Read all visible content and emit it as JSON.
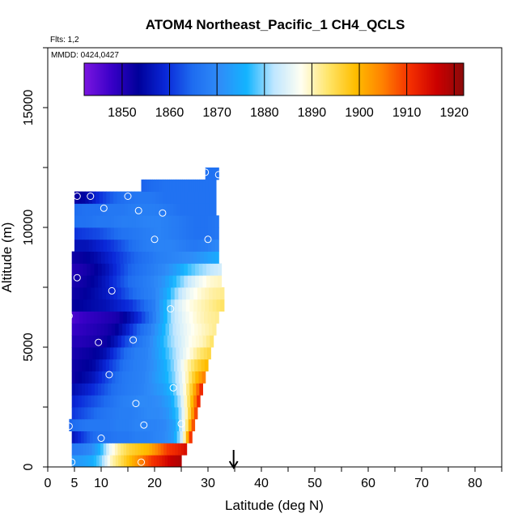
{
  "chart_data": {
    "type": "heatmap",
    "title": "ATOM4 Northeast_Pacific_1 CH4_QCLS",
    "flights_label": "Flts: 1,2",
    "date_label": "MMDD: 0424,0427",
    "xlabel": "Latitude (deg N)",
    "ylabel": "Altitude (m)",
    "xlim": [
      0,
      85
    ],
    "ylim": [
      0,
      17500
    ],
    "x_ticks": [
      0,
      5,
      10,
      20,
      30,
      40,
      50,
      60,
      70,
      80
    ],
    "y_ticks": [
      0,
      5000,
      10000,
      15000
    ],
    "y_tick_labels": [
      "0",
      "5000",
      "10000",
      "15000"
    ],
    "colorbar": {
      "range": [
        1842,
        1922
      ],
      "ticks": [
        1850,
        1860,
        1870,
        1880,
        1890,
        1900,
        1910,
        1920
      ],
      "tick_labels": [
        "1850",
        "1860",
        "1870",
        "1880",
        "1890",
        "1900",
        "1910",
        "1920"
      ],
      "colors": [
        "#7b16e0",
        "#3a00c8",
        "#00009a",
        "#0a28d8",
        "#1e6cf0",
        "#2f8cf8",
        "#13b4ff",
        "#bfe6ff",
        "#fffff2",
        "#ffe56a",
        "#ffbe00",
        "#ff8200",
        "#f53000",
        "#cc0000",
        "#8b0a0a"
      ]
    },
    "marker_lat": 34.8,
    "bands": [
      {
        "alt": [
          0,
          500
        ],
        "lat": [
          4.5,
          25
        ],
        "values": [
          1872,
          1873,
          1875,
          1880,
          1890,
          1895,
          1900,
          1905,
          1910,
          1913,
          1917,
          1919
        ]
      },
      {
        "alt": [
          500,
          1000
        ],
        "lat": [
          4.5,
          26
        ],
        "values": [
          1867,
          1868,
          1870,
          1876,
          1886,
          1892,
          1896,
          1898,
          1900,
          1905,
          1910,
          1912,
          1915
        ]
      },
      {
        "alt": [
          1000,
          1500
        ],
        "lat": [
          4.5,
          27
        ],
        "values": [
          1856,
          1860,
          1864,
          1866,
          1866,
          1867,
          1867,
          1868,
          1868,
          1869,
          1870,
          1873,
          1885,
          1915
        ]
      },
      {
        "alt": [
          1500,
          2000
        ],
        "lat": [
          4.0,
          27.5
        ],
        "values": [
          1864,
          1866,
          1867,
          1867,
          1867,
          1868,
          1868,
          1869,
          1869,
          1869,
          1870,
          1874,
          1888,
          1912
        ]
      },
      {
        "alt": [
          2000,
          2500
        ],
        "lat": [
          4.5,
          28
        ],
        "values": [
          1860,
          1862,
          1864,
          1866,
          1867,
          1868,
          1868,
          1869,
          1870,
          1870,
          1872,
          1878,
          1892,
          1912
        ]
      },
      {
        "alt": [
          2500,
          3000
        ],
        "lat": [
          4.5,
          28.5
        ],
        "values": [
          1858,
          1860,
          1862,
          1864,
          1866,
          1868,
          1869,
          1870,
          1870,
          1871,
          1874,
          1882,
          1896,
          1914
        ]
      },
      {
        "alt": [
          3000,
          3500
        ],
        "lat": [
          4.5,
          29
        ],
        "values": [
          1855,
          1857,
          1859,
          1862,
          1865,
          1867,
          1868,
          1869,
          1871,
          1873,
          1877,
          1886,
          1898,
          1914
        ]
      },
      {
        "alt": [
          3500,
          4000
        ],
        "lat": [
          4.5,
          29.5
        ],
        "values": [
          1852,
          1854,
          1856,
          1860,
          1864,
          1867,
          1868,
          1869,
          1872,
          1875,
          1880,
          1888,
          1898,
          1906
        ]
      },
      {
        "alt": [
          4000,
          4500
        ],
        "lat": [
          4.5,
          30
        ],
        "values": [
          1852,
          1853,
          1854,
          1858,
          1862,
          1866,
          1868,
          1869,
          1872,
          1876,
          1882,
          1890,
          1896,
          1900
        ]
      },
      {
        "alt": [
          4500,
          5000
        ],
        "lat": [
          4.5,
          30.5
        ],
        "values": [
          1851,
          1852,
          1853,
          1855,
          1860,
          1865,
          1868,
          1869,
          1873,
          1878,
          1883,
          1888,
          1893,
          1896
        ]
      },
      {
        "alt": [
          5000,
          5500
        ],
        "lat": [
          4.5,
          31
        ],
        "values": [
          1850,
          1850,
          1851,
          1852,
          1856,
          1862,
          1866,
          1869,
          1874,
          1880,
          1884,
          1888,
          1890,
          1894
        ]
      },
      {
        "alt": [
          5500,
          6000
        ],
        "lat": [
          4.5,
          31.5
        ],
        "values": [
          1848,
          1849,
          1850,
          1851,
          1853,
          1858,
          1864,
          1868,
          1874,
          1881,
          1885,
          1888,
          1890,
          1892
        ]
      },
      {
        "alt": [
          6000,
          6500
        ],
        "lat": [
          4.5,
          32
        ],
        "values": [
          1846,
          1848,
          1849,
          1850,
          1851,
          1855,
          1860,
          1866,
          1874,
          1882,
          1886,
          1889,
          1891,
          1892
        ]
      },
      {
        "alt": [
          6500,
          7000
        ],
        "lat": [
          4.5,
          33
        ],
        "values": [
          1853,
          1854,
          1855,
          1856,
          1858,
          1860,
          1864,
          1868,
          1876,
          1884,
          1888,
          1890,
          1892,
          1894
        ]
      },
      {
        "alt": [
          7000,
          7500
        ],
        "lat": [
          4.5,
          33
        ],
        "values": [
          1852,
          1853,
          1855,
          1857,
          1860,
          1864,
          1867,
          1869,
          1874,
          1881,
          1886,
          1889,
          1891,
          1892
        ]
      },
      {
        "alt": [
          7500,
          8000
        ],
        "lat": [
          4.5,
          32.5
        ],
        "values": [
          1851,
          1852,
          1854,
          1857,
          1861,
          1865,
          1867,
          1869,
          1872,
          1877,
          1882,
          1886,
          1889,
          1890
        ]
      },
      {
        "alt": [
          8000,
          8500
        ],
        "lat": [
          4.5,
          32.5
        ],
        "values": [
          1850,
          1851,
          1853,
          1856,
          1860,
          1864,
          1866,
          1868,
          1870,
          1873,
          1877,
          1880,
          1882,
          1884
        ]
      },
      {
        "alt": [
          8500,
          9000
        ],
        "lat": [
          4.5,
          32
        ],
        "values": [
          1852,
          1853,
          1855,
          1858,
          1861,
          1864,
          1866,
          1868,
          1869,
          1870,
          1871,
          1873,
          1875
        ]
      },
      {
        "alt": [
          9000,
          9500
        ],
        "lat": [
          5,
          32
        ],
        "values": [
          1856,
          1856,
          1858,
          1860,
          1863,
          1866,
          1868,
          1869,
          1869,
          1868,
          1867,
          1868,
          1870
        ]
      },
      {
        "alt": [
          9500,
          10000
        ],
        "lat": [
          5,
          32
        ],
        "values": [
          1860,
          1861,
          1862,
          1864,
          1866,
          1867,
          1868,
          1869,
          1868,
          1867,
          1866,
          1866,
          1867
        ]
      },
      {
        "alt": [
          10000,
          10500
        ],
        "lat": [
          5,
          32
        ],
        "values": [
          1866,
          1866,
          1867,
          1867,
          1868,
          1868,
          1869,
          1869,
          1868,
          1867,
          1866,
          1866,
          1867
        ]
      },
      {
        "alt": [
          10500,
          11000
        ],
        "lat": [
          5,
          31.5
        ],
        "values": [
          1865,
          1866,
          1866,
          1867,
          1867,
          1868,
          1868,
          1868,
          1867,
          1866,
          1866,
          1866,
          1866
        ]
      },
      {
        "alt": [
          11000,
          11500
        ],
        "lat": [
          5,
          31.5
        ],
        "values": [
          1852,
          1855,
          1860,
          1864,
          1866,
          1867,
          1867,
          1866,
          1866,
          1866,
          1866,
          1866
        ]
      },
      {
        "alt": [
          11500,
          12000
        ],
        "lat": [
          17.5,
          31.5
        ],
        "values": [
          1864,
          1865,
          1866,
          1866,
          1866,
          1866,
          1866
        ]
      },
      {
        "alt": [
          12000,
          12500
        ],
        "lat": [
          29.5,
          32
        ],
        "values": [
          1866,
          1866
        ]
      }
    ],
    "points": [
      {
        "lat": 4.5,
        "alt": 200
      },
      {
        "lat": 17.5,
        "alt": 200
      },
      {
        "lat": 10,
        "alt": 1200
      },
      {
        "lat": 4,
        "alt": 1700
      },
      {
        "lat": 18,
        "alt": 1750
      },
      {
        "lat": 25,
        "alt": 1800
      },
      {
        "lat": 16.5,
        "alt": 2650
      },
      {
        "lat": 23.5,
        "alt": 3300
      },
      {
        "lat": 11.5,
        "alt": 3850
      },
      {
        "lat": 9.5,
        "alt": 5200
      },
      {
        "lat": 16,
        "alt": 5300
      },
      {
        "lat": 4,
        "alt": 6300
      },
      {
        "lat": 23,
        "alt": 6600
      },
      {
        "lat": 12,
        "alt": 7350
      },
      {
        "lat": 5.5,
        "alt": 7900
      },
      {
        "lat": 20,
        "alt": 9500
      },
      {
        "lat": 30,
        "alt": 9500
      },
      {
        "lat": 21.5,
        "alt": 10600
      },
      {
        "lat": 17,
        "alt": 10700
      },
      {
        "lat": 10.5,
        "alt": 10800
      },
      {
        "lat": 5.5,
        "alt": 11300
      },
      {
        "lat": 8,
        "alt": 11300
      },
      {
        "lat": 15,
        "alt": 11300
      },
      {
        "lat": 29.5,
        "alt": 12300
      },
      {
        "lat": 32,
        "alt": 12200
      }
    ]
  }
}
